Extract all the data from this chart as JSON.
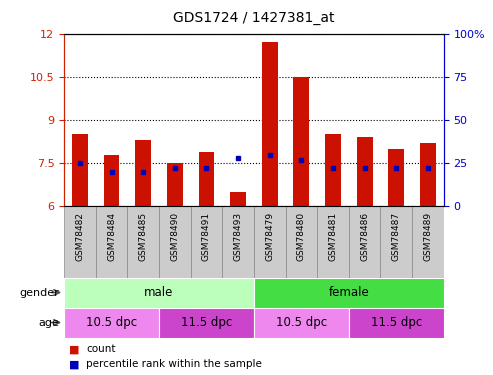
{
  "title": "GDS1724 / 1427381_at",
  "samples": [
    "GSM78482",
    "GSM78484",
    "GSM78485",
    "GSM78490",
    "GSM78491",
    "GSM78493",
    "GSM78479",
    "GSM78480",
    "GSM78481",
    "GSM78486",
    "GSM78487",
    "GSM78489"
  ],
  "count_values": [
    8.5,
    7.8,
    8.3,
    7.5,
    7.9,
    6.5,
    11.7,
    10.5,
    8.5,
    8.4,
    8.0,
    8.2
  ],
  "percentile_values": [
    25,
    20,
    20,
    22,
    22,
    28,
    30,
    27,
    22,
    22,
    22,
    22
  ],
  "ymin": 6,
  "ymax": 12,
  "yticks": [
    6,
    7.5,
    9,
    10.5,
    12
  ],
  "ytick_labels": [
    "6",
    "7.5",
    "9",
    "10.5",
    "12"
  ],
  "y2ticks": [
    0,
    25,
    50,
    75,
    100
  ],
  "y2tick_labels": [
    "0",
    "25",
    "50",
    "75",
    "100%"
  ],
  "gender_groups": [
    {
      "label": "male",
      "start": 0,
      "end": 6,
      "color": "#bbffbb"
    },
    {
      "label": "female",
      "start": 6,
      "end": 12,
      "color": "#44dd44"
    }
  ],
  "age_groups": [
    {
      "label": "10.5 dpc",
      "start": 0,
      "end": 3,
      "color": "#ee88ee"
    },
    {
      "label": "11.5 dpc",
      "start": 3,
      "end": 6,
      "color": "#cc44cc"
    },
    {
      "label": "10.5 dpc",
      "start": 6,
      "end": 9,
      "color": "#ee88ee"
    },
    {
      "label": "11.5 dpc",
      "start": 9,
      "end": 12,
      "color": "#cc44cc"
    }
  ],
  "bar_color": "#cc1100",
  "dot_color": "#0000bb",
  "bar_width": 0.5,
  "legend_count_color": "#cc1100",
  "legend_dot_color": "#0000bb",
  "xlim_left": -0.5,
  "xlim_right": 11.5,
  "label_box_color": "#cccccc",
  "label_box_edgecolor": "#888888"
}
